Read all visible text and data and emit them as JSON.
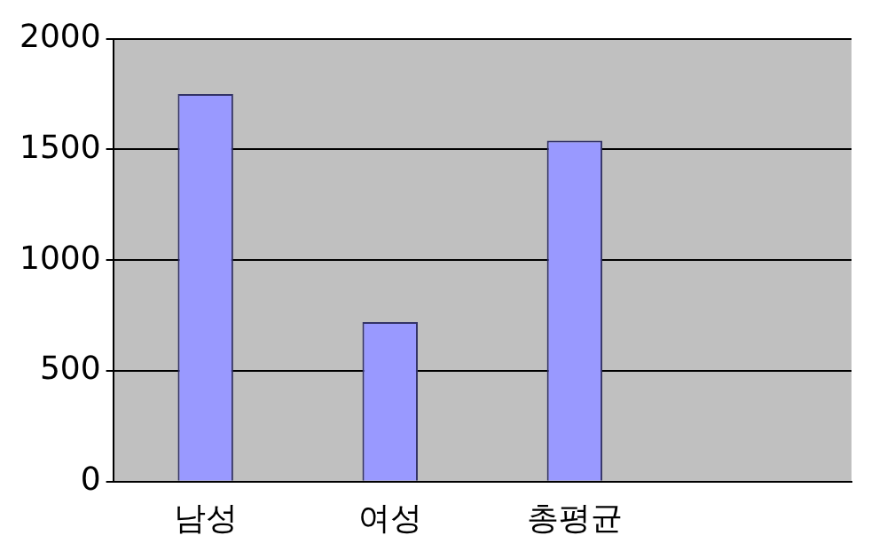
{
  "chart_data": {
    "type": "bar",
    "categories": [
      "남성",
      "여성",
      "총평균",
      null
    ],
    "series": [
      {
        "color": "#9999ff",
        "values": [
          1750,
          720,
          1540,
          null
        ]
      }
    ],
    "ylim": [
      0,
      2000
    ],
    "yticks": [
      0,
      500,
      1000,
      1500,
      2000
    ],
    "grid": "y",
    "legend": false
  }
}
